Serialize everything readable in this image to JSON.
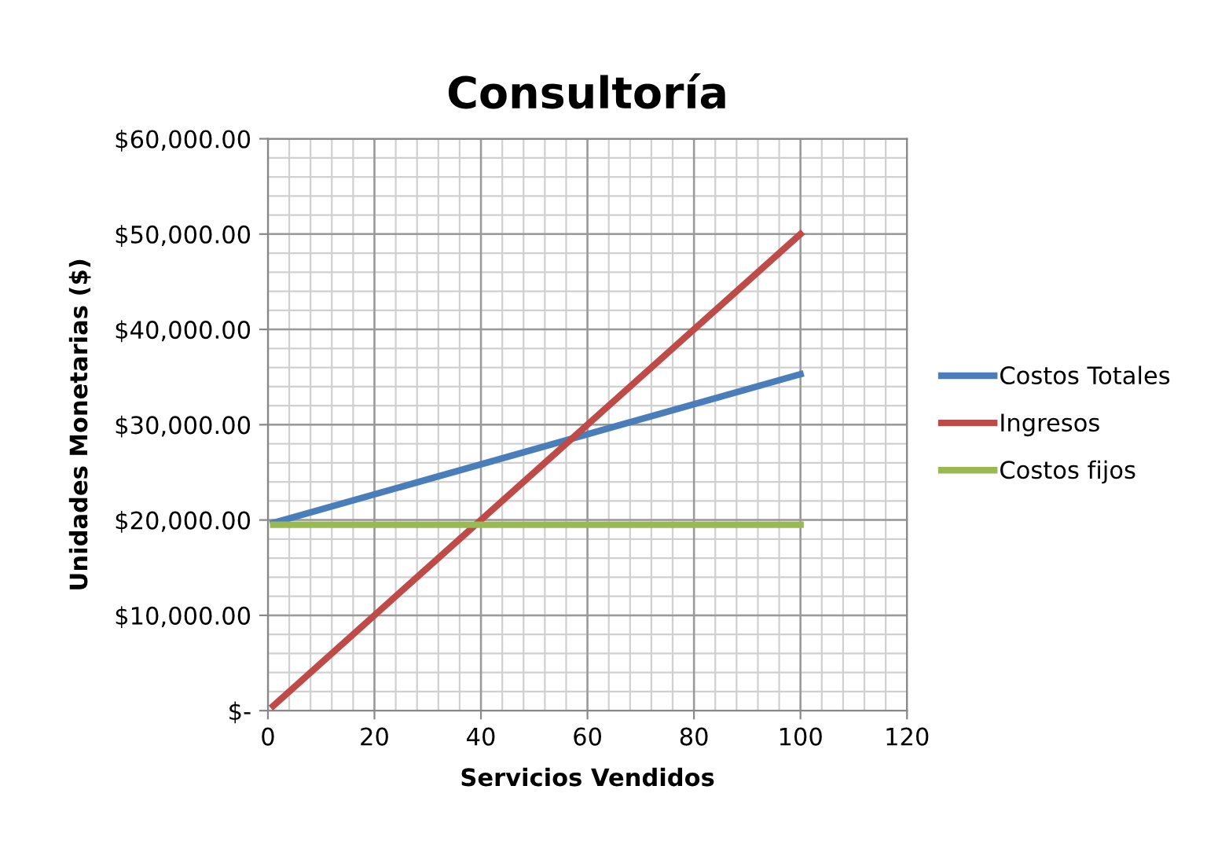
{
  "chart_data": {
    "type": "line",
    "title": "Consultoría",
    "xlabel": "Servicios Vendidos",
    "ylabel": "Unidades Monetarias ($)",
    "x": [
      1,
      100
    ],
    "series": [
      {
        "name": "Costos Totales",
        "color": "#4a7ebb",
        "values": [
          19700,
          35300
        ]
      },
      {
        "name": "Ingresos",
        "color": "#be4b48",
        "values": [
          500,
          50000
        ]
      },
      {
        "name": "Costos fijos",
        "color": "#98b954",
        "values": [
          19500,
          19500
        ]
      }
    ],
    "xlim": [
      0,
      120
    ],
    "xticks": [
      0,
      20,
      40,
      60,
      80,
      100,
      120
    ],
    "ylim": [
      0,
      60000
    ],
    "yticks": [
      {
        "value": 0,
        "label": "$-"
      },
      {
        "value": 10000,
        "label": "$10,000.00"
      },
      {
        "value": 20000,
        "label": "$20,000.00"
      },
      {
        "value": 30000,
        "label": "$30,000.00"
      },
      {
        "value": 40000,
        "label": "$40,000.00"
      },
      {
        "value": 50000,
        "label": "$50,000.00"
      },
      {
        "value": 60000,
        "label": "$60,000.00"
      }
    ],
    "grid": true,
    "legend": "right",
    "marker": "none",
    "line_style": "solid"
  }
}
